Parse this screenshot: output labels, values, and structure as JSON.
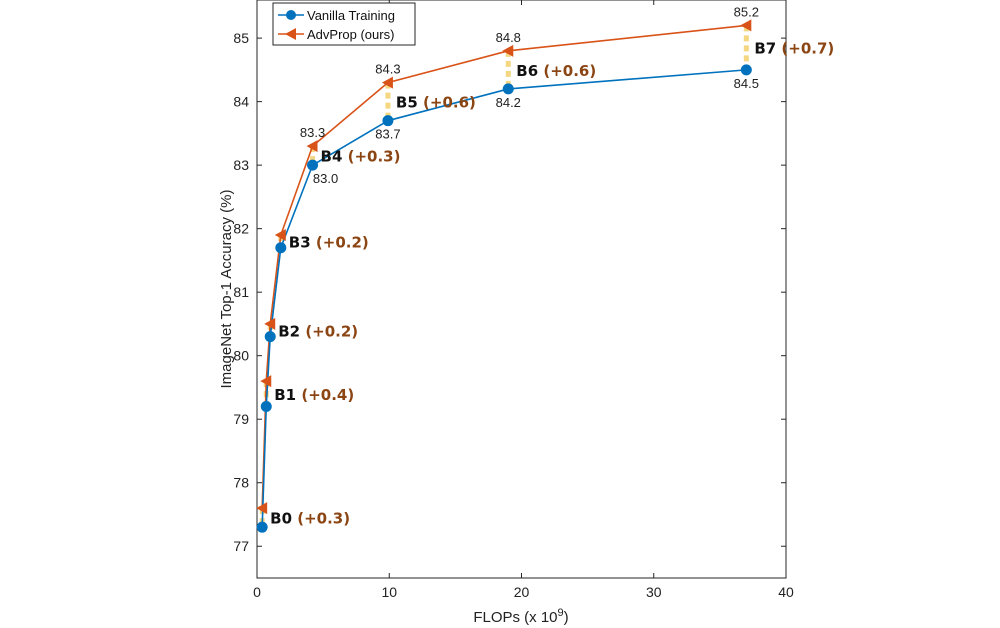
{
  "chart_data": {
    "type": "line",
    "xlabel": "FLOPs (x 10",
    "xlabel_exp": "9",
    "xlabel_close": ")",
    "ylabel": "ImageNet Top-1 Accuracy (%)",
    "xlim": [
      0,
      40
    ],
    "ylim": [
      76.5,
      85.6
    ],
    "xticks": [
      0,
      10,
      20,
      30,
      40
    ],
    "yticks": [
      77,
      78,
      79,
      80,
      81,
      82,
      83,
      84,
      85
    ],
    "legend": [
      "Vanilla Training",
      "AdvProp (ours)"
    ],
    "colors": {
      "vanilla": "#0072BD",
      "advprop": "#D95319",
      "gap": "#F5D782",
      "gain_text": "#8B4513"
    },
    "models": [
      "B0",
      "B1",
      "B2",
      "B3",
      "B4",
      "B5",
      "B6",
      "B7"
    ],
    "gains": [
      "(+0.3)",
      "(+0.4)",
      "(+0.2)",
      "(+0.2)",
      "(+0.3)",
      "(+0.6)",
      "(+0.6)",
      "(+0.7)"
    ],
    "x": [
      0.39,
      0.7,
      1.0,
      1.8,
      4.2,
      9.9,
      19,
      37
    ],
    "series": [
      {
        "name": "Vanilla Training",
        "values": [
          77.3,
          79.2,
          80.3,
          81.7,
          83.0,
          83.7,
          84.2,
          84.5
        ]
      },
      {
        "name": "AdvProp (ours)",
        "values": [
          77.6,
          79.6,
          80.5,
          81.9,
          83.3,
          84.3,
          84.8,
          85.2
        ]
      }
    ],
    "value_labels": [
      {
        "text": "83.0",
        "series": 0,
        "index": 4
      },
      {
        "text": "83.7",
        "series": 0,
        "index": 5
      },
      {
        "text": "84.2",
        "series": 0,
        "index": 6
      },
      {
        "text": "84.5",
        "series": 0,
        "index": 7
      },
      {
        "text": "83.3",
        "series": 1,
        "index": 4
      },
      {
        "text": "84.3",
        "series": 1,
        "index": 5
      },
      {
        "text": "84.8",
        "series": 1,
        "index": 6
      },
      {
        "text": "85.2",
        "series": 1,
        "index": 7
      }
    ]
  }
}
